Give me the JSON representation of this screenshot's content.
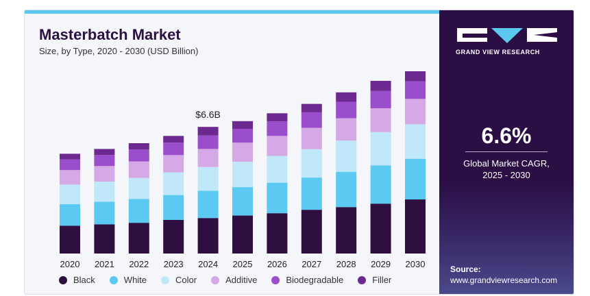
{
  "title": "Masterbatch Market",
  "subtitle": "Size, by Type, 2020 - 2030 (USD Billion)",
  "brand": {
    "name": "GRAND VIEW RESEARCH",
    "cagr_value": "6.6%",
    "cagr_label_line1": "Global Market CAGR,",
    "cagr_label_line2": "2025 - 2030",
    "source_label": "Source:",
    "source_url": "www.grandviewresearch.com"
  },
  "chart_data": {
    "type": "bar",
    "stacked": true,
    "categories": [
      "2020",
      "2021",
      "2022",
      "2023",
      "2024",
      "2025",
      "2026",
      "2027",
      "2028",
      "2029",
      "2030"
    ],
    "series": [
      {
        "name": "Black",
        "color": "#2e0f3f",
        "values": [
          1.45,
          1.52,
          1.6,
          1.75,
          1.85,
          1.98,
          2.1,
          2.28,
          2.42,
          2.6,
          2.82
        ]
      },
      {
        "name": "White",
        "color": "#5cc9f2",
        "values": [
          1.12,
          1.18,
          1.24,
          1.3,
          1.42,
          1.48,
          1.59,
          1.68,
          1.84,
          1.99,
          2.12
        ]
      },
      {
        "name": "Color",
        "color": "#c0e8f8",
        "values": [
          1.02,
          1.05,
          1.1,
          1.18,
          1.24,
          1.32,
          1.4,
          1.48,
          1.63,
          1.74,
          1.8
        ]
      },
      {
        "name": "Additive",
        "color": "#d4a9e6",
        "values": [
          0.76,
          0.81,
          0.86,
          0.9,
          0.94,
          1.0,
          1.04,
          1.11,
          1.16,
          1.24,
          1.32
        ]
      },
      {
        "name": "Biodegradable",
        "color": "#9b4ecb",
        "values": [
          0.55,
          0.58,
          0.62,
          0.65,
          0.7,
          0.72,
          0.76,
          0.81,
          0.86,
          0.9,
          0.92
        ]
      },
      {
        "name": "Filler",
        "color": "#6c2a91",
        "values": [
          0.3,
          0.31,
          0.33,
          0.35,
          0.45,
          0.4,
          0.42,
          0.44,
          0.49,
          0.53,
          0.52
        ]
      }
    ],
    "annotations": [
      {
        "category": "2024",
        "text": "$6.6B"
      }
    ],
    "ylim": [
      0,
      10
    ],
    "grid": false,
    "legend": "bottom"
  }
}
